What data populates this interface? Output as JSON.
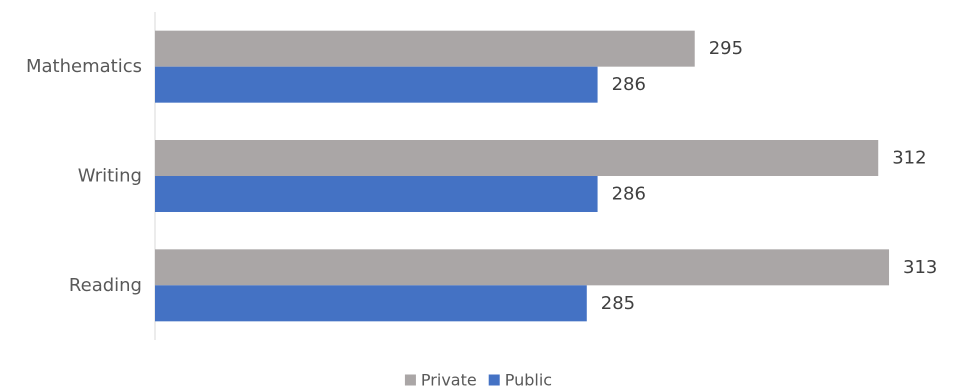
{
  "chart_data": {
    "type": "bar",
    "orientation": "horizontal",
    "title": "",
    "xlabel": "",
    "ylabel": "",
    "categories": [
      "Mathematics",
      "Writing",
      "Reading"
    ],
    "series": [
      {
        "name": "Private",
        "values": [
          295,
          312,
          313
        ],
        "color": "#aaa6a6"
      },
      {
        "name": "Public",
        "values": [
          286,
          286,
          285
        ],
        "color": "#4472c4"
      }
    ],
    "xlim": [
      245,
      318
    ],
    "grid": false,
    "data_labels": true,
    "legend_position": "bottom"
  }
}
